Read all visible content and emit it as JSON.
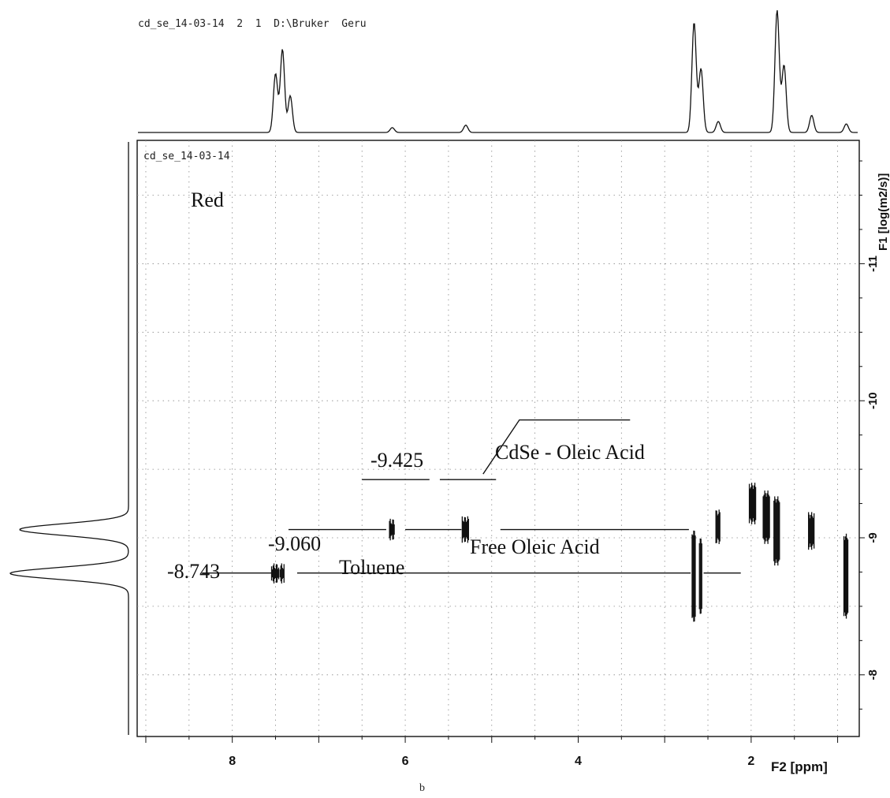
{
  "header": {
    "title": "cd_se_14-03-14  2  1  D:\\Bruker  Geru"
  },
  "chart_data": {
    "type": "scatter",
    "plot_label": "cd_se_14-03-14",
    "sample_label": "Red",
    "xlabel": "F2 [ppm]",
    "ylabel": "F1 [log(m2/s)]",
    "xlim": [
      9.1,
      0.75
    ],
    "ylim": [
      -7.55,
      -11.9
    ],
    "x_ticks": [
      8,
      6,
      4,
      2
    ],
    "y_ticks": [
      -8,
      -9,
      -10,
      -11
    ],
    "grid": true,
    "caption": "b",
    "annotations": [
      {
        "value_label": "-9.425",
        "name": "CdSe - Oleic Acid",
        "y": -9.425
      },
      {
        "value_label": "-9.060",
        "name": "Free Oleic Acid",
        "y": -9.06
      },
      {
        "value_label": "-8.743",
        "name": "Toluene",
        "y": -8.743
      }
    ],
    "cross_peaks": [
      {
        "x": 7.5,
        "y": -8.74
      },
      {
        "x": 7.42,
        "y": -8.74
      },
      {
        "x": 6.15,
        "y": -9.06
      },
      {
        "x": 5.3,
        "y": -9.06
      },
      {
        "x": 2.66,
        "y": -8.72
      },
      {
        "x": 2.58,
        "y": -8.72
      },
      {
        "x": 2.38,
        "y": -9.08
      },
      {
        "x": 1.98,
        "y": -9.25
      },
      {
        "x": 1.82,
        "y": -9.15
      },
      {
        "x": 1.7,
        "y": -9.05
      },
      {
        "x": 1.3,
        "y": -9.05
      },
      {
        "x": 0.9,
        "y": -8.72
      }
    ],
    "projection_f2": {
      "peaks": [
        {
          "x": 7.5,
          "h": 0.48
        },
        {
          "x": 7.42,
          "h": 0.68
        },
        {
          "x": 7.33,
          "h": 0.3
        },
        {
          "x": 6.15,
          "h": 0.04
        },
        {
          "x": 5.3,
          "h": 0.06
        },
        {
          "x": 2.66,
          "h": 0.9
        },
        {
          "x": 2.58,
          "h": 0.52
        },
        {
          "x": 2.38,
          "h": 0.09
        },
        {
          "x": 1.7,
          "h": 1.0
        },
        {
          "x": 1.62,
          "h": 0.55
        },
        {
          "x": 1.3,
          "h": 0.14
        },
        {
          "x": 0.9,
          "h": 0.07
        }
      ]
    },
    "projection_f1": {
      "peaks": [
        {
          "y": -9.06,
          "h": 0.92
        },
        {
          "y": -8.74,
          "h": 1.0
        }
      ]
    }
  }
}
